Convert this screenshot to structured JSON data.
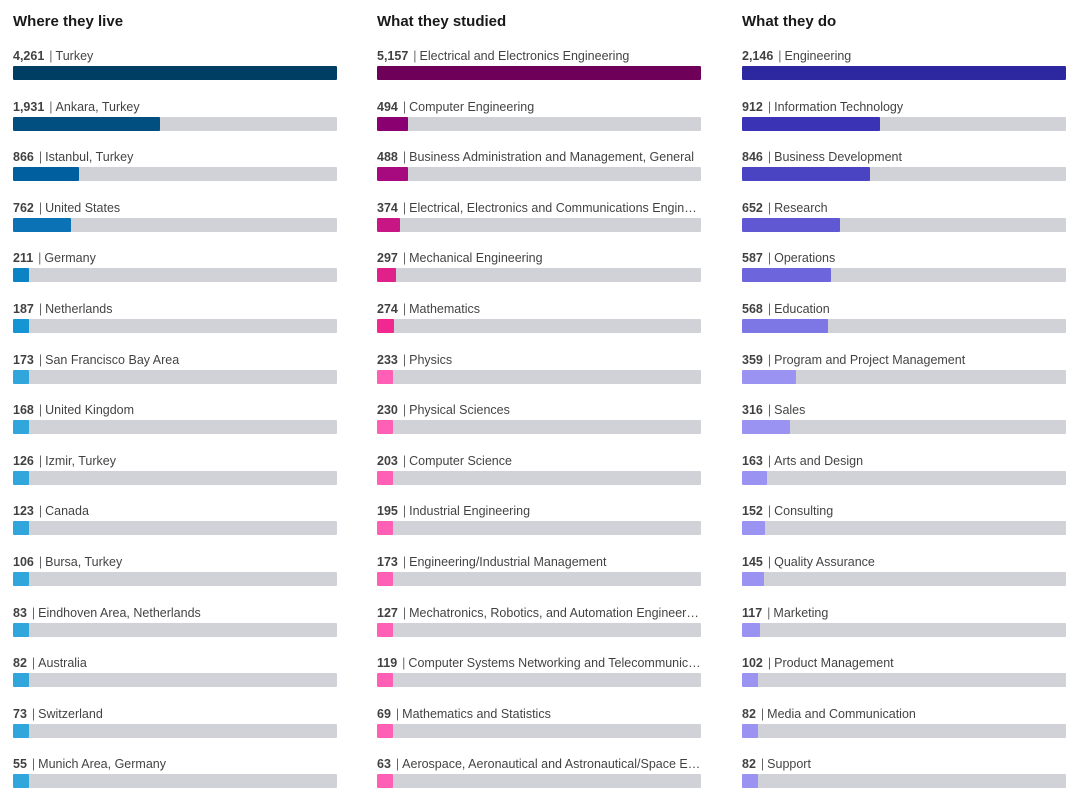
{
  "chart_data": [
    {
      "type": "bar",
      "title": "Where they live",
      "items": [
        {
          "value": 4261,
          "count_label": "4,261",
          "label": "Turkey",
          "color": "#003e63"
        },
        {
          "value": 1931,
          "count_label": "1,931",
          "label": "Ankara, Turkey",
          "color": "#004f80"
        },
        {
          "value": 866,
          "count_label": "866",
          "label": "Istanbul, Turkey",
          "color": "#005f9e"
        },
        {
          "value": 762,
          "count_label": "762",
          "label": "United States",
          "color": "#0a72b5"
        },
        {
          "value": 211,
          "count_label": "211",
          "label": "Germany",
          "color": "#0b83c5"
        },
        {
          "value": 187,
          "count_label": "187",
          "label": "Netherlands",
          "color": "#1595d3"
        },
        {
          "value": 173,
          "count_label": "173",
          "label": "San Francisco Bay Area",
          "color": "#31a6dc"
        },
        {
          "value": 168,
          "count_label": "168",
          "label": "United Kingdom",
          "color": "#31a6dc"
        },
        {
          "value": 126,
          "count_label": "126",
          "label": "Izmir, Turkey",
          "color": "#31a6dc"
        },
        {
          "value": 123,
          "count_label": "123",
          "label": "Canada",
          "color": "#31a6dc"
        },
        {
          "value": 106,
          "count_label": "106",
          "label": "Bursa, Turkey",
          "color": "#31a6dc"
        },
        {
          "value": 83,
          "count_label": "83",
          "label": "Eindhoven Area, Netherlands",
          "color": "#31a6dc"
        },
        {
          "value": 82,
          "count_label": "82",
          "label": "Australia",
          "color": "#31a6dc"
        },
        {
          "value": 73,
          "count_label": "73",
          "label": "Switzerland",
          "color": "#31a6dc"
        },
        {
          "value": 55,
          "count_label": "55",
          "label": "Munich Area, Germany",
          "color": "#31a6dc"
        }
      ]
    },
    {
      "type": "bar",
      "title": "What they studied",
      "items": [
        {
          "value": 5157,
          "count_label": "5,157",
          "label": "Electrical and Electronics Engineering",
          "color": "#6e0059"
        },
        {
          "value": 494,
          "count_label": "494",
          "label": "Computer Engineering",
          "color": "#8a0070"
        },
        {
          "value": 488,
          "count_label": "488",
          "label": "Business Administration and Management, General",
          "color": "#a70a7f"
        },
        {
          "value": 374,
          "count_label": "374",
          "label": "Electrical, Electronics and Communications Engineering",
          "color": "#c81785"
        },
        {
          "value": 297,
          "count_label": "297",
          "label": "Mechanical Engineering",
          "color": "#e0218a"
        },
        {
          "value": 274,
          "count_label": "274",
          "label": "Mathematics",
          "color": "#f0288f"
        },
        {
          "value": 233,
          "count_label": "233",
          "label": "Physics",
          "color": "#ff5fb4"
        },
        {
          "value": 230,
          "count_label": "230",
          "label": "Physical Sciences",
          "color": "#ff5fb4"
        },
        {
          "value": 203,
          "count_label": "203",
          "label": "Computer Science",
          "color": "#ff5fb4"
        },
        {
          "value": 195,
          "count_label": "195",
          "label": "Industrial Engineering",
          "color": "#ff5fb4"
        },
        {
          "value": 173,
          "count_label": "173",
          "label": "Engineering/Industrial Management",
          "color": "#ff5fb4"
        },
        {
          "value": 127,
          "count_label": "127",
          "label": "Mechatronics, Robotics, and Automation Engineering",
          "color": "#ff5fb4"
        },
        {
          "value": 119,
          "count_label": "119",
          "label": "Computer Systems Networking and Telecommunicati…",
          "color": "#ff5fb4"
        },
        {
          "value": 69,
          "count_label": "69",
          "label": "Mathematics and Statistics",
          "color": "#ff5fb4"
        },
        {
          "value": 63,
          "count_label": "63",
          "label": "Aerospace, Aeronautical and Astronautical/Space Engi…",
          "color": "#ff5fb4"
        }
      ]
    },
    {
      "type": "bar",
      "title": "What they do",
      "items": [
        {
          "value": 2146,
          "count_label": "2,146",
          "label": "Engineering",
          "color": "#2e28a0"
        },
        {
          "value": 912,
          "count_label": "912",
          "label": "Information Technology",
          "color": "#3a33b5"
        },
        {
          "value": 846,
          "count_label": "846",
          "label": "Business Development",
          "color": "#4a43c2"
        },
        {
          "value": 652,
          "count_label": "652",
          "label": "Research",
          "color": "#5f58d2"
        },
        {
          "value": 587,
          "count_label": "587",
          "label": "Operations",
          "color": "#6c65dc"
        },
        {
          "value": 568,
          "count_label": "568",
          "label": "Education",
          "color": "#7d77e6"
        },
        {
          "value": 359,
          "count_label": "359",
          "label": "Program and Project Management",
          "color": "#9a93f2"
        },
        {
          "value": 316,
          "count_label": "316",
          "label": "Sales",
          "color": "#9a93f2"
        },
        {
          "value": 163,
          "count_label": "163",
          "label": "Arts and Design",
          "color": "#9a93f2"
        },
        {
          "value": 152,
          "count_label": "152",
          "label": "Consulting",
          "color": "#9a93f2"
        },
        {
          "value": 145,
          "count_label": "145",
          "label": "Quality Assurance",
          "color": "#9a93f2"
        },
        {
          "value": 117,
          "count_label": "117",
          "label": "Marketing",
          "color": "#9a93f2"
        },
        {
          "value": 102,
          "count_label": "102",
          "label": "Product Management",
          "color": "#9a93f2"
        },
        {
          "value": 82,
          "count_label": "82",
          "label": "Media and Communication",
          "color": "#9a93f2"
        },
        {
          "value": 82,
          "count_label": "82",
          "label": "Support",
          "color": "#9a93f2"
        }
      ]
    }
  ],
  "ui": {
    "separator": "|"
  }
}
